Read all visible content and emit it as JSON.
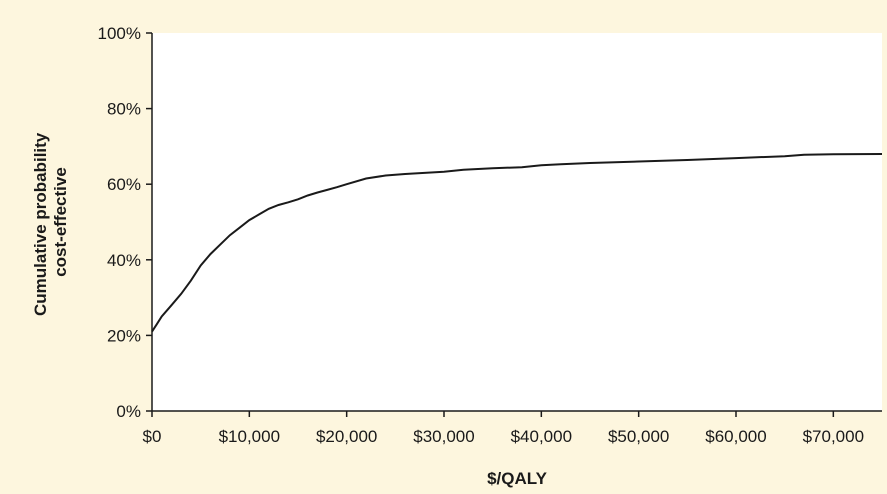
{
  "chart_data": {
    "type": "line",
    "title": "",
    "xlabel": "$/QALY",
    "ylabel": [
      "Cumulative probability",
      "cost-effective"
    ],
    "xlim": [
      0,
      75000
    ],
    "ylim": [
      0,
      100
    ],
    "x_ticks": [
      0,
      10000,
      20000,
      30000,
      40000,
      50000,
      60000,
      70000
    ],
    "x_tick_labels": [
      "$0",
      "$10,000",
      "$20,000",
      "$30,000",
      "$40,000",
      "$50,000",
      "$60,000",
      "$70,000"
    ],
    "y_ticks": [
      0,
      20,
      40,
      60,
      80,
      100
    ],
    "y_tick_labels": [
      "0%",
      "20%",
      "40%",
      "60%",
      "80%",
      "100%"
    ],
    "grid": false,
    "legend": "none",
    "colors": {
      "plot_bg": "#ffffff",
      "page_bg": "#fdf6de",
      "line": "#1a1a1a"
    },
    "series": [
      {
        "x": [
          0,
          500,
          1000,
          2000,
          3000,
          4000,
          5000,
          6000,
          7000,
          8000,
          9000,
          10000,
          11000,
          12000,
          13000,
          14000,
          15000,
          16000,
          17000,
          18000,
          19000,
          20000,
          22000,
          24000,
          26000,
          28000,
          30000,
          32000,
          35000,
          38000,
          40000,
          42000,
          45000,
          50000,
          55000,
          60000,
          65000,
          67000,
          70000,
          75000
        ],
        "y": [
          21,
          23,
          25,
          28,
          31,
          34.5,
          38.5,
          41.5,
          44,
          46.5,
          48.5,
          50.5,
          52,
          53.5,
          54.5,
          55.2,
          56,
          57,
          57.8,
          58.5,
          59.2,
          60,
          61.5,
          62.3,
          62.7,
          63,
          63.3,
          63.8,
          64.2,
          64.5,
          65,
          65.3,
          65.6,
          66,
          66.4,
          66.9,
          67.4,
          67.8,
          67.9,
          68
        ]
      }
    ]
  }
}
